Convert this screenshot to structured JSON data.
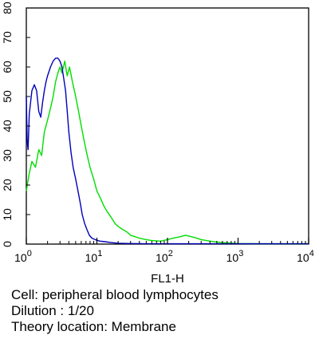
{
  "chart_data": {
    "type": "line",
    "xlabel": "FL1-H",
    "ylabel": "",
    "x_scale": "log",
    "xlim": [
      1,
      10000
    ],
    "ylim": [
      0,
      80
    ],
    "x_ticks": [
      {
        "value": 1,
        "base": "10",
        "exp": "0"
      },
      {
        "value": 10,
        "base": "10",
        "exp": "1"
      },
      {
        "value": 100,
        "base": "10",
        "exp": "2"
      },
      {
        "value": 1000,
        "base": "10",
        "exp": "3"
      },
      {
        "value": 10000,
        "base": "10",
        "exp": "4"
      }
    ],
    "y_ticks": [
      0,
      10,
      20,
      30,
      40,
      50,
      60,
      70,
      80
    ],
    "grid": false,
    "series": [
      {
        "color": "#00dd00",
        "points": [
          [
            1.0,
            18
          ],
          [
            1.1,
            24
          ],
          [
            1.2,
            28
          ],
          [
            1.35,
            26
          ],
          [
            1.5,
            32
          ],
          [
            1.65,
            30
          ],
          [
            1.8,
            38
          ],
          [
            2.0,
            42
          ],
          [
            2.2,
            46
          ],
          [
            2.4,
            50
          ],
          [
            2.6,
            55
          ],
          [
            2.8,
            58
          ],
          [
            3.0,
            60
          ],
          [
            3.2,
            58
          ],
          [
            3.5,
            62
          ],
          [
            3.8,
            57
          ],
          [
            4.1,
            60
          ],
          [
            4.5,
            55
          ],
          [
            5.0,
            50
          ],
          [
            5.5,
            45
          ],
          [
            6.0,
            40
          ],
          [
            6.6,
            35
          ],
          [
            7.3,
            30
          ],
          [
            8.0,
            26
          ],
          [
            9.0,
            22
          ],
          [
            10.0,
            18
          ],
          [
            11.0,
            16
          ],
          [
            12.5,
            13
          ],
          [
            14.0,
            11
          ],
          [
            16.0,
            9
          ],
          [
            18.0,
            7
          ],
          [
            20.0,
            6
          ],
          [
            23.0,
            5
          ],
          [
            27.0,
            4
          ],
          [
            30.0,
            3
          ],
          [
            35.0,
            2.5
          ],
          [
            40.0,
            2
          ],
          [
            50.0,
            1.5
          ],
          [
            60.0,
            1.2
          ],
          [
            80.0,
            1.0
          ],
          [
            100.0,
            1.5
          ],
          [
            120.0,
            2.0
          ],
          [
            150.0,
            2.5
          ],
          [
            180.0,
            3.0
          ],
          [
            220.0,
            2.5
          ],
          [
            260.0,
            2.0
          ],
          [
            300.0,
            1.5
          ],
          [
            400.0,
            1.0
          ],
          [
            500.0,
            0.7
          ],
          [
            700.0,
            0.4
          ],
          [
            1000.0,
            0.2
          ],
          [
            2000.0,
            0.1
          ],
          [
            10000.0,
            0.1
          ]
        ]
      },
      {
        "color": "#0000bb",
        "points": [
          [
            1.0,
            50
          ],
          [
            1.03,
            35
          ],
          [
            1.06,
            32
          ],
          [
            1.1,
            44
          ],
          [
            1.2,
            52
          ],
          [
            1.3,
            54
          ],
          [
            1.4,
            52
          ],
          [
            1.5,
            45
          ],
          [
            1.6,
            43
          ],
          [
            1.7,
            48
          ],
          [
            1.8,
            52
          ],
          [
            1.9,
            55
          ],
          [
            2.0,
            57
          ],
          [
            2.2,
            60
          ],
          [
            2.4,
            62
          ],
          [
            2.6,
            63
          ],
          [
            2.8,
            63
          ],
          [
            3.0,
            62
          ],
          [
            3.2,
            60
          ],
          [
            3.4,
            56
          ],
          [
            3.6,
            52
          ],
          [
            3.8,
            45
          ],
          [
            4.0,
            38
          ],
          [
            4.3,
            31
          ],
          [
            4.6,
            26
          ],
          [
            5.0,
            22
          ],
          [
            5.4,
            18
          ],
          [
            5.8,
            14
          ],
          [
            6.2,
            10
          ],
          [
            6.7,
            7
          ],
          [
            7.2,
            5
          ],
          [
            7.8,
            3
          ],
          [
            8.5,
            2
          ],
          [
            9.5,
            1.5
          ],
          [
            11.0,
            1.0
          ],
          [
            13.0,
            0.8
          ],
          [
            16.0,
            0.5
          ],
          [
            20.0,
            0.3
          ],
          [
            30.0,
            0.2
          ],
          [
            50.0,
            0.1
          ],
          [
            10000.0,
            0.1
          ]
        ]
      }
    ]
  },
  "caption": {
    "line1": "Cell: peripheral blood lymphocytes",
    "line2": "Dilution : 1/20",
    "line3": "Theory location: Membrane"
  }
}
